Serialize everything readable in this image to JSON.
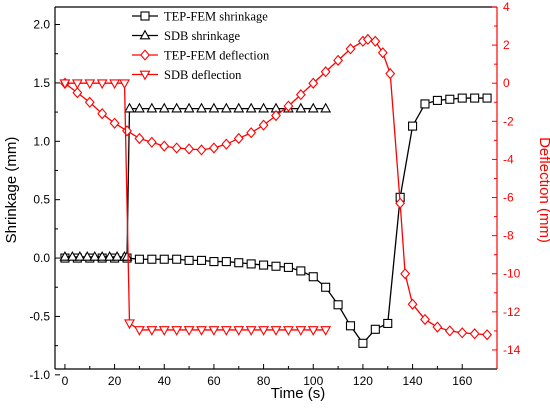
{
  "chart_data": {
    "type": "line",
    "xlabel": "Time (s)",
    "ylabel": "Shrinkage (mm)",
    "y2label": "Deflection (mm)",
    "xlim": [
      -4,
      174
    ],
    "ylim": [
      -0.95,
      2.15
    ],
    "y2lim": [
      -15,
      4
    ],
    "xticks": [
      0,
      20,
      40,
      60,
      80,
      100,
      120,
      140,
      160
    ],
    "yticks": [
      -1.0,
      -0.5,
      0.0,
      0.5,
      1.0,
      1.5,
      2.0
    ],
    "y2ticks": [
      -14,
      -12,
      -10,
      -8,
      -6,
      -4,
      -2,
      0,
      2,
      4
    ],
    "legend_position": "top-left",
    "series": [
      {
        "name": "TEP-FEM shrinkage",
        "axis": "left",
        "color": "#000000",
        "marker": "square",
        "x": [
          0,
          5,
          10,
          15,
          20,
          25,
          30,
          35,
          40,
          45,
          50,
          55,
          60,
          65,
          70,
          75,
          80,
          85,
          90,
          95,
          100,
          105,
          110,
          115,
          120,
          125,
          130,
          135,
          140,
          145,
          150,
          155,
          160,
          165,
          170
        ],
        "y": [
          0.0,
          0.0,
          0.0,
          0.0,
          0.0,
          0.0,
          -0.01,
          -0.01,
          -0.01,
          -0.01,
          -0.02,
          -0.02,
          -0.03,
          -0.03,
          -0.04,
          -0.05,
          -0.06,
          -0.07,
          -0.08,
          -0.11,
          -0.16,
          -0.25,
          -0.4,
          -0.58,
          -0.73,
          -0.61,
          -0.56,
          0.52,
          1.13,
          1.32,
          1.35,
          1.36,
          1.37,
          1.37,
          1.37
        ]
      },
      {
        "name": "SDB shrinkage",
        "axis": "left",
        "color": "#000000",
        "marker": "triangle-up",
        "x": [
          0,
          3,
          6,
          9,
          12,
          15,
          18,
          21,
          24,
          25,
          26,
          30,
          35,
          40,
          45,
          50,
          55,
          60,
          65,
          70,
          75,
          80,
          85,
          90,
          95,
          100,
          105
        ],
        "y": [
          0.01,
          0.01,
          0.01,
          0.01,
          0.01,
          0.01,
          0.01,
          0.01,
          0.01,
          0.01,
          1.28,
          1.28,
          1.28,
          1.28,
          1.28,
          1.28,
          1.28,
          1.28,
          1.28,
          1.28,
          1.28,
          1.28,
          1.28,
          1.28,
          1.28,
          1.28,
          1.28
        ]
      },
      {
        "name": "TEP-FEM deflection",
        "axis": "right",
        "color": "#ff0000",
        "marker": "diamond",
        "x": [
          0,
          5,
          10,
          15,
          20,
          25,
          30,
          35,
          40,
          45,
          50,
          55,
          60,
          65,
          70,
          75,
          80,
          85,
          90,
          95,
          100,
          105,
          110,
          115,
          120,
          122,
          125,
          128,
          131,
          135,
          137,
          140,
          145,
          150,
          155,
          160,
          165,
          170
        ],
        "y": [
          0.0,
          -0.5,
          -1.0,
          -1.6,
          -2.1,
          -2.5,
          -2.9,
          -3.1,
          -3.3,
          -3.4,
          -3.45,
          -3.5,
          -3.4,
          -3.2,
          -2.9,
          -2.6,
          -2.2,
          -1.7,
          -1.2,
          -0.6,
          0.0,
          0.6,
          1.2,
          1.8,
          2.2,
          2.3,
          2.2,
          1.6,
          0.5,
          -6.3,
          -10.0,
          -11.6,
          -12.4,
          -12.8,
          -13.0,
          -13.1,
          -13.15,
          -13.2
        ]
      },
      {
        "name": "SDB deflection",
        "axis": "right",
        "color": "#ff0000",
        "marker": "triangle-down",
        "x": [
          0,
          5,
          10,
          15,
          20,
          24,
          26,
          30,
          35,
          40,
          45,
          50,
          55,
          60,
          65,
          70,
          75,
          80,
          85,
          90,
          95,
          100,
          105
        ],
        "y": [
          0.0,
          0.0,
          0.0,
          0.0,
          0.0,
          0.0,
          -12.6,
          -12.95,
          -12.95,
          -12.95,
          -12.95,
          -12.95,
          -12.95,
          -12.95,
          -12.95,
          -12.95,
          -12.95,
          -12.95,
          -12.95,
          -12.95,
          -12.95,
          -12.95,
          -12.95
        ]
      }
    ]
  }
}
